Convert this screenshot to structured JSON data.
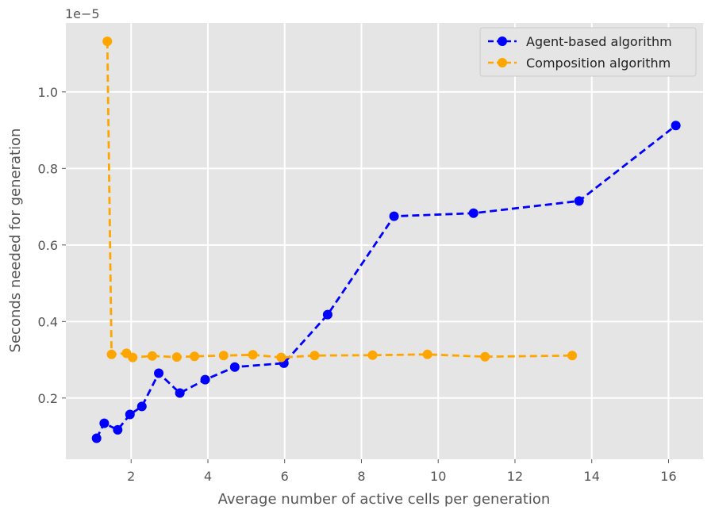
{
  "chart_data": {
    "type": "line",
    "title": "",
    "xlabel": "Average number of active cells per generation",
    "ylabel": "Seconds needed for generation",
    "y_offset_label": "1e−5",
    "xlim": [
      0.3,
      16.9
    ],
    "ylim": [
      0.04,
      1.18
    ],
    "xticks": [
      2,
      4,
      6,
      8,
      10,
      12,
      14,
      16
    ],
    "yticks": [
      0.2,
      0.4,
      0.6,
      0.8,
      1.0
    ],
    "xtick_labels": [
      "2",
      "4",
      "6",
      "8",
      "10",
      "12",
      "14",
      "16"
    ],
    "ytick_labels": [
      "0.2",
      "0.4",
      "0.6",
      "0.8",
      "1.0"
    ],
    "grid": true,
    "legend_position": "top-right",
    "series": [
      {
        "name": "Agent-based algorithm",
        "color": "#0000ff",
        "x": [
          1.1,
          1.3,
          1.65,
          1.97,
          2.28,
          2.72,
          3.27,
          3.93,
          4.7,
          5.98,
          7.12,
          8.85,
          10.92,
          13.67,
          16.19
        ],
        "y": [
          0.095,
          0.134,
          0.117,
          0.157,
          0.178,
          0.265,
          0.213,
          0.248,
          0.281,
          0.291,
          0.418,
          0.675,
          0.683,
          0.715,
          0.912
        ]
      },
      {
        "name": "Composition algorithm",
        "color": "#ffa500",
        "x": [
          1.38,
          1.49,
          1.88,
          2.04,
          2.55,
          3.19,
          3.65,
          4.41,
          5.17,
          5.91,
          6.78,
          8.29,
          9.72,
          11.22,
          13.49
        ],
        "y": [
          1.132,
          0.314,
          0.317,
          0.306,
          0.31,
          0.307,
          0.309,
          0.311,
          0.313,
          0.306,
          0.311,
          0.312,
          0.314,
          0.308,
          0.311
        ]
      }
    ]
  }
}
